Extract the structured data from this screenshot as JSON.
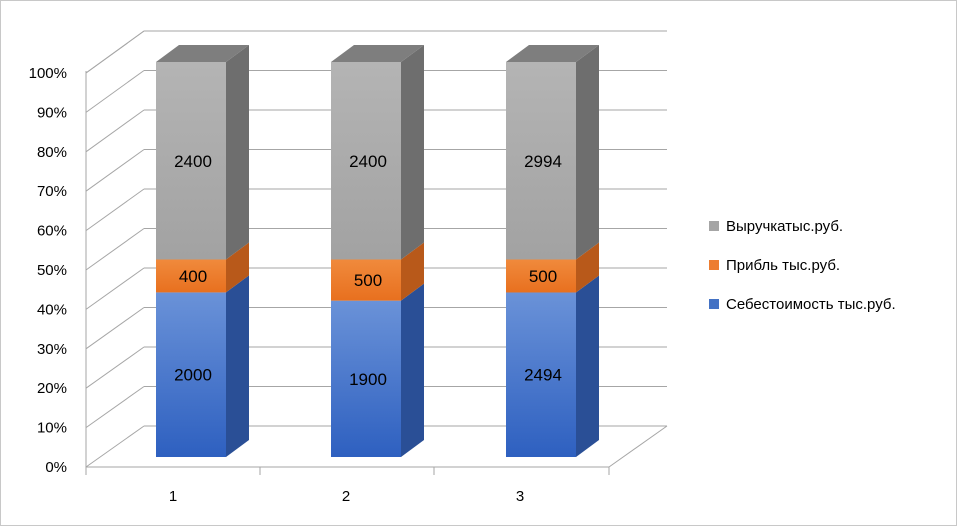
{
  "chart_data": {
    "type": "bar",
    "stacking": "percent",
    "three_d": true,
    "categories": [
      "1",
      "2",
      "3"
    ],
    "series": [
      {
        "name": "Себестоимость тыс.руб.",
        "values": [
          2000,
          1900,
          2494
        ],
        "color": "#4472C4",
        "labels": [
          "2000",
          "1900",
          "2494"
        ]
      },
      {
        "name": "Прибль тыс.руб.",
        "values": [
          400,
          500,
          500
        ],
        "color": "#ED7D31",
        "labels": [
          "400",
          "500",
          "500"
        ]
      },
      {
        "name": "Выручкатыс.руб.",
        "values": [
          2400,
          2400,
          2994
        ],
        "color": "#A5A5A5",
        "labels": [
          "2400",
          "2400",
          "2994"
        ]
      }
    ],
    "y_ticks": [
      "0%",
      "10%",
      "20%",
      "30%",
      "40%",
      "50%",
      "60%",
      "70%",
      "80%",
      "90%",
      "100%"
    ],
    "ylim": [
      0,
      1
    ],
    "grid": true,
    "legend_position": "right",
    "legend_order": [
      "Выручкатыс.руб.",
      "Прибль тыс.руб.",
      "Себестоимость тыс.руб."
    ]
  }
}
